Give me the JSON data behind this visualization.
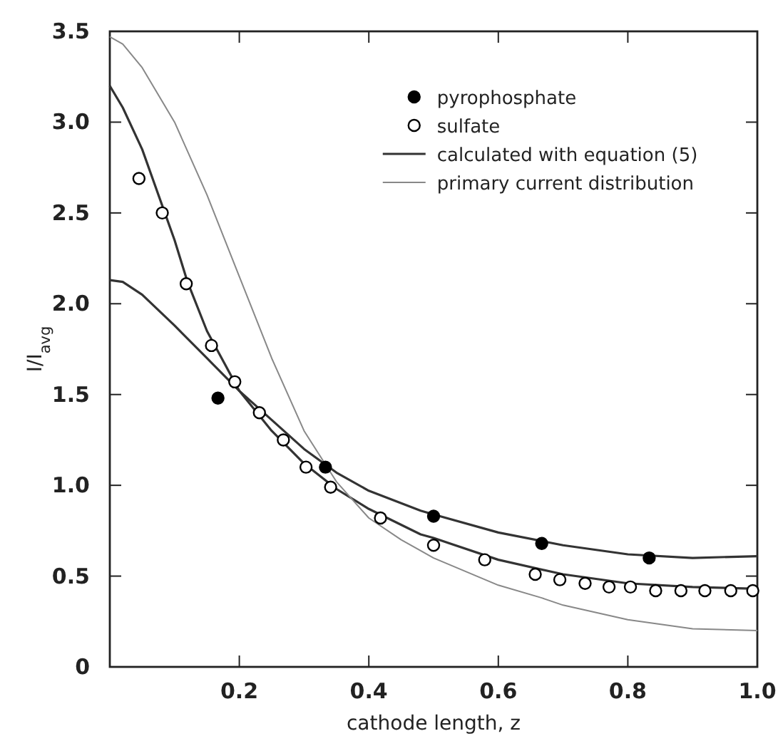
{
  "chart_data": {
    "type": "scatter",
    "xlabel": "cathode length, z",
    "ylabel": "I/I$_{avg}$",
    "xlim": [
      0,
      1
    ],
    "ylim": [
      0,
      3.5
    ],
    "xticks": [
      0.2,
      0.4,
      0.6,
      0.8,
      {
        "value": 1,
        "label": "1.0"
      }
    ],
    "yticks": [
      0,
      0.5,
      {
        "value": 1,
        "label": "1.0"
      },
      1.5,
      {
        "value": 2,
        "label": "2.0"
      },
      2.5,
      {
        "value": 3,
        "label": "3.0"
      },
      3.5
    ],
    "legend": "top right",
    "grid": false,
    "series": [
      {
        "name": "pyrophosphate",
        "marker": "circle",
        "color": "#000000",
        "x": [
          0.167,
          0.333,
          0.5,
          0.667,
          0.833
        ],
        "values": [
          1.48,
          1.1,
          0.83,
          0.68,
          0.6
        ]
      },
      {
        "name": "sulfate",
        "marker": "circle",
        "color": "#ffffff",
        "x": [
          0.045,
          0.081,
          0.118,
          0.157,
          0.193,
          0.231,
          0.268,
          0.303,
          0.341,
          0.418,
          0.5,
          0.579,
          0.657,
          0.695,
          0.734,
          0.771,
          0.804,
          0.843,
          0.882,
          0.919,
          0.959,
          0.993
        ],
        "values": [
          2.69,
          2.5,
          2.11,
          1.77,
          1.57,
          1.4,
          1.25,
          1.1,
          0.99,
          0.82,
          0.67,
          0.59,
          0.51,
          0.48,
          0.46,
          0.44,
          0.44,
          0.42,
          0.42,
          0.42,
          0.42,
          0.42
        ]
      },
      {
        "name": "calculated with equation (5)",
        "type": "line",
        "line_style": "solid",
        "color": "#333333",
        "x": [
          0,
          0.02,
          0.05,
          0.1,
          0.15,
          0.2,
          0.25,
          0.3,
          0.35,
          0.4,
          0.48,
          0.5,
          0.6,
          0.7,
          0.8,
          0.9,
          1
        ],
        "values": [
          2.13,
          2.12,
          2.05,
          1.88,
          1.7,
          1.52,
          1.36,
          1.2,
          1.07,
          0.97,
          0.86,
          0.84,
          0.74,
          0.67,
          0.62,
          0.6,
          0.61
        ]
      },
      {
        "type": "line",
        "line_style": "solid",
        "color": "#333333",
        "x": [
          0,
          0.02,
          0.05,
          0.08,
          0.1,
          0.12,
          0.15,
          0.2,
          0.25,
          0.3,
          0.35,
          0.4,
          0.48,
          0.5,
          0.6,
          0.7,
          0.8,
          0.9,
          1
        ],
        "values": [
          3.2,
          3.08,
          2.85,
          2.55,
          2.35,
          2.12,
          1.85,
          1.52,
          1.3,
          1.12,
          0.98,
          0.87,
          0.73,
          0.71,
          0.59,
          0.51,
          0.46,
          0.44,
          0.43
        ]
      },
      {
        "name": "primary current distribution",
        "type": "line",
        "line_style": "solid",
        "color": "#888888",
        "x": [
          0,
          0.02,
          0.05,
          0.1,
          0.15,
          0.2,
          0.25,
          0.3,
          0.35,
          0.4,
          0.45,
          0.48,
          0.5,
          0.6,
          0.667,
          0.7,
          0.8,
          0.9,
          1
        ],
        "values": [
          3.47,
          3.43,
          3.3,
          3.0,
          2.6,
          2.15,
          1.7,
          1.3,
          1.02,
          0.82,
          0.7,
          0.64,
          0.6,
          0.45,
          0.38,
          0.34,
          0.26,
          0.21,
          0.2
        ]
      }
    ]
  }
}
